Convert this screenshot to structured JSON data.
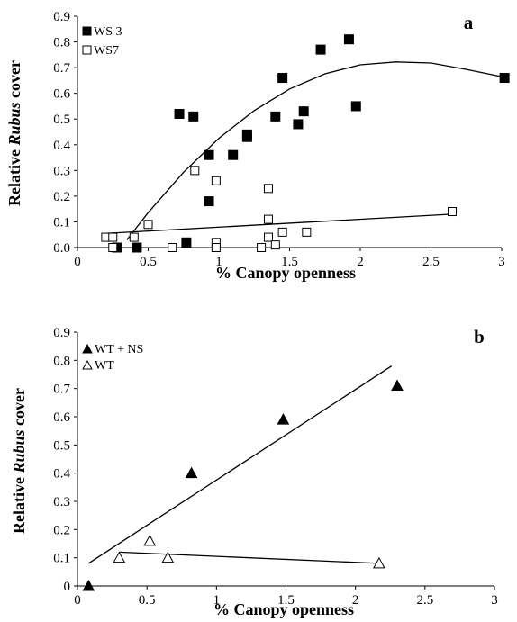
{
  "chart_data": [
    {
      "panel": "a",
      "type": "scatter",
      "xlabel": "% Canopy openness",
      "ylabel": {
        "before": "Relative ",
        "italic": "Rubus",
        "after": " cover"
      },
      "xlim": [
        0,
        3
      ],
      "ylim": [
        0,
        0.9
      ],
      "x_ticks": [
        "0",
        "0.5",
        "1",
        "1.5",
        "2",
        "2.5",
        "3"
      ],
      "y_ticks": [
        "0.0",
        "0.1",
        "0.2",
        "0.3",
        "0.4",
        "0.5",
        "0.6",
        "0.7",
        "0.8",
        "0.9"
      ],
      "legend_position": "top-left",
      "series": [
        {
          "name": "WS 3",
          "marker": "filled-square",
          "fit": "quadratic",
          "points": [
            [
              0.28,
              0.0
            ],
            [
              0.42,
              0.0
            ],
            [
              0.77,
              0.02
            ],
            [
              0.72,
              0.52
            ],
            [
              0.82,
              0.51
            ],
            [
              0.93,
              0.36
            ],
            [
              0.93,
              0.18
            ],
            [
              1.1,
              0.36
            ],
            [
              1.2,
              0.44
            ],
            [
              1.2,
              0.43
            ],
            [
              1.4,
              0.51
            ],
            [
              1.45,
              0.66
            ],
            [
              1.56,
              0.48
            ],
            [
              1.6,
              0.53
            ],
            [
              1.72,
              0.77
            ],
            [
              1.92,
              0.81
            ],
            [
              1.97,
              0.55
            ],
            [
              3.02,
              0.66
            ]
          ],
          "trend": [
            [
              0.35,
              0.03
            ],
            [
              0.5,
              0.136
            ],
            [
              0.75,
              0.293
            ],
            [
              1.0,
              0.425
            ],
            [
              1.25,
              0.533
            ],
            [
              1.5,
              0.617
            ],
            [
              1.75,
              0.676
            ],
            [
              2.0,
              0.711
            ],
            [
              2.25,
              0.722
            ],
            [
              2.5,
              0.718
            ],
            [
              2.75,
              0.693
            ],
            [
              3.0,
              0.665
            ]
          ]
        },
        {
          "name": "WS7",
          "marker": "open-square",
          "fit": "linear",
          "points": [
            [
              0.2,
              0.04
            ],
            [
              0.25,
              0.04
            ],
            [
              0.25,
              0.0
            ],
            [
              0.4,
              0.04
            ],
            [
              0.5,
              0.09
            ],
            [
              0.67,
              0.0
            ],
            [
              0.83,
              0.3
            ],
            [
              0.98,
              0.26
            ],
            [
              0.98,
              0.02
            ],
            [
              0.98,
              0.0
            ],
            [
              1.3,
              0.0
            ],
            [
              1.35,
              0.23
            ],
            [
              1.35,
              0.11
            ],
            [
              1.35,
              0.04
            ],
            [
              1.4,
              0.01
            ],
            [
              1.45,
              0.06
            ],
            [
              1.62,
              0.06
            ],
            [
              2.65,
              0.14
            ]
          ],
          "trend": [
            [
              0.2,
              0.055
            ],
            [
              2.65,
              0.13
            ]
          ]
        }
      ]
    },
    {
      "panel": "b",
      "type": "scatter",
      "xlabel": "% Canopy openness",
      "ylabel": {
        "before": "Relative ",
        "italic": "Rubus",
        "after": " cover"
      },
      "xlim": [
        0,
        3
      ],
      "ylim": [
        0,
        0.9
      ],
      "x_ticks": [
        "0",
        "0.5",
        "1",
        "1.5",
        "2",
        "2.5",
        "3"
      ],
      "y_ticks": [
        "0",
        "0.1",
        "0.2",
        "0.3",
        "0.4",
        "0.5",
        "0.6",
        "0.7",
        "0.8",
        "0.9"
      ],
      "legend_position": "top-left",
      "series": [
        {
          "name": "WT + NS",
          "marker": "filled-triangle",
          "fit": "linear",
          "points": [
            [
              0.08,
              0.0
            ],
            [
              0.82,
              0.4
            ],
            [
              1.48,
              0.59
            ],
            [
              2.3,
              0.71
            ]
          ],
          "trend": [
            [
              0.08,
              0.08
            ],
            [
              2.26,
              0.78
            ]
          ]
        },
        {
          "name": "WT",
          "marker": "open-triangle",
          "fit": "linear",
          "points": [
            [
              0.3,
              0.1
            ],
            [
              0.52,
              0.16
            ],
            [
              0.65,
              0.1
            ],
            [
              2.17,
              0.08
            ]
          ],
          "trend": [
            [
              0.3,
              0.12
            ],
            [
              2.17,
              0.08
            ]
          ]
        }
      ]
    }
  ]
}
